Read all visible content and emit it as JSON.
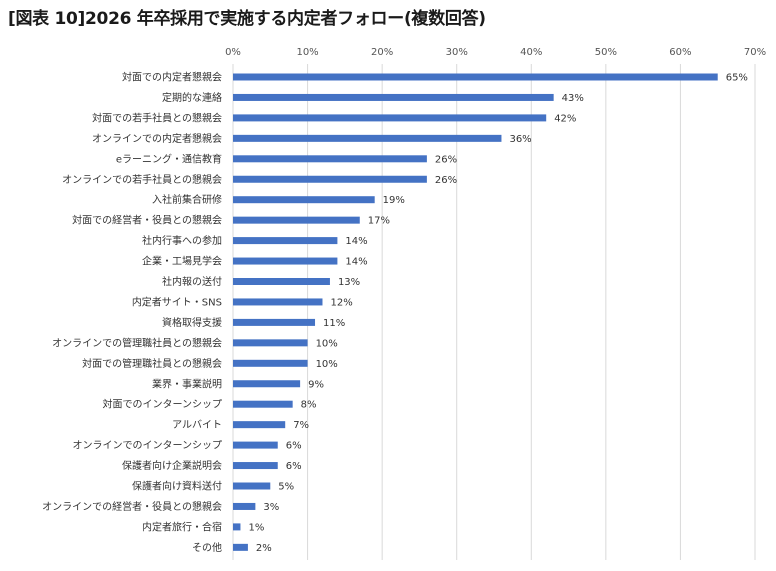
{
  "chart_data": {
    "type": "bar",
    "orientation": "horizontal",
    "title": "[図表 10]2026 年卒採用で実施する内定者フォロー(複数回答)",
    "xlabel": "",
    "ylabel": "",
    "xlim": [
      0,
      70
    ],
    "x_ticks": [
      "0%",
      "10%",
      "20%",
      "30%",
      "40%",
      "50%",
      "60%",
      "70%"
    ],
    "grid": true,
    "legend": "none",
    "bar_color": "#4472c4",
    "grid_color": "#d9d9d9",
    "categories": [
      "対面での内定者懇親会",
      "定期的な連絡",
      "対面での若手社員との懇親会",
      "オンラインでの内定者懇親会",
      "eラーニング・通信教育",
      "オンラインでの若手社員との懇親会",
      "入社前集合研修",
      "対面での経営者・役員との懇親会",
      "社内行事への参加",
      "企業・工場見学会",
      "社内報の送付",
      "内定者サイト・SNS",
      "資格取得支援",
      "オンラインでの管理職社員との懇親会",
      "対面での管理職社員との懇親会",
      "業界・事業説明",
      "対面でのインターンシップ",
      "アルバイト",
      "オンラインでのインターンシップ",
      "保護者向け企業説明会",
      "保護者向け資料送付",
      "オンラインでの経営者・役員との懇親会",
      "内定者旅行・合宿",
      "その他"
    ],
    "values": [
      65,
      43,
      42,
      36,
      26,
      26,
      19,
      17,
      14,
      14,
      13,
      12,
      11,
      10,
      10,
      9,
      8,
      7,
      6,
      6,
      5,
      3,
      1,
      2
    ],
    "data_labels": [
      "65%",
      "43%",
      "42%",
      "36%",
      "26%",
      "26%",
      "19%",
      "17%",
      "14%",
      "14%",
      "13%",
      "12%",
      "11%",
      "10%",
      "10%",
      "9%",
      "8%",
      "7%",
      "6%",
      "6%",
      "5%",
      "3%",
      "1%",
      "2%"
    ]
  }
}
